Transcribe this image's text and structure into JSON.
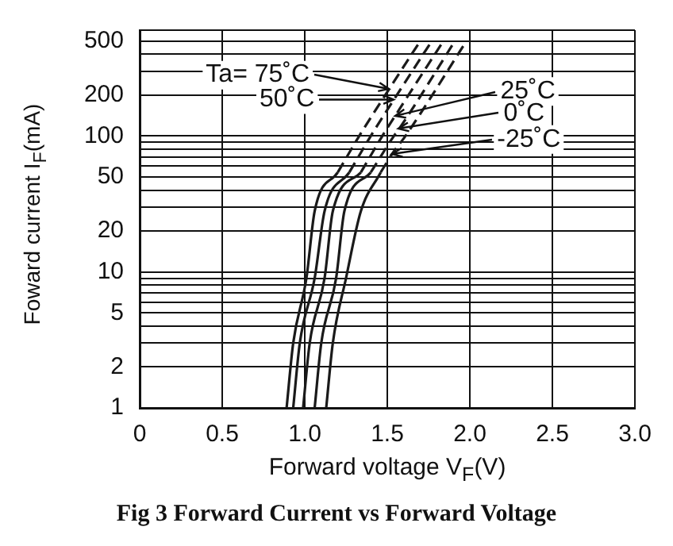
{
  "chart_data": {
    "type": "line",
    "title": "Fig 3  Forward Current vs Forward Voltage",
    "xlabel": "Forward voltage V$_{F}$(V)",
    "ylabel": "Foward current I$_{F}$(mA)",
    "log": "y",
    "grid": true,
    "legend": false,
    "marker": "none",
    "xlim": [
      0,
      3
    ],
    "xticks": [
      0,
      {
        "value": 0.5,
        "label": "0.5"
      },
      {
        "value": 1,
        "label": "1.0"
      },
      {
        "value": 1.5,
        "label": "1.5"
      },
      {
        "value": 2,
        "label": "2.0"
      },
      {
        "value": 2.5,
        "label": "2.5"
      },
      {
        "value": 3,
        "label": "3.0"
      }
    ],
    "ylim": [
      1,
      600
    ],
    "yticks": [
      1,
      2,
      {
        "value": 3,
        "label": null
      },
      {
        "value": 4,
        "label": null
      },
      5,
      {
        "value": 6,
        "label": null
      },
      {
        "value": 7,
        "label": null
      },
      {
        "value": 8,
        "label": null
      },
      {
        "value": 9,
        "label": null
      },
      10,
      20,
      {
        "value": 30,
        "label": null
      },
      {
        "value": 40,
        "label": null
      },
      50,
      {
        "value": 60,
        "label": null
      },
      {
        "value": 70,
        "label": null
      },
      {
        "value": 80,
        "label": null
      },
      {
        "value": 90,
        "label": null
      },
      100,
      200,
      {
        "value": 300,
        "label": null
      },
      {
        "value": 400,
        "label": null
      },
      500,
      {
        "value": 600,
        "label": null
      }
    ],
    "series": [
      {
        "color": "#1a1a1a",
        "line_style": "solid",
        "x": [
          0.89,
          0.93,
          1.01,
          1.06,
          1.2
        ],
        "values": [
          1,
          3,
          9,
          28,
          54
        ]
      },
      {
        "color": "#1a1a1a",
        "line_style": "solid",
        "x": [
          0.93,
          0.97,
          1.06,
          1.12,
          1.27
        ],
        "values": [
          1,
          3,
          9,
          28,
          54
        ]
      },
      {
        "color": "#1a1a1a",
        "line_style": "solid",
        "x": [
          0.99,
          1.03,
          1.12,
          1.17,
          1.34
        ],
        "values": [
          1,
          3,
          9,
          28,
          54
        ]
      },
      {
        "color": "#1a1a1a",
        "line_style": "solid",
        "x": [
          1.06,
          1.1,
          1.19,
          1.24,
          1.4
        ],
        "values": [
          1,
          3,
          9,
          28,
          54
        ]
      },
      {
        "color": "#1a1a1a",
        "line_style": "solid",
        "x": [
          1.13,
          1.17,
          1.25,
          1.34,
          1.46
        ],
        "values": [
          1,
          3,
          9,
          28,
          54
        ]
      },
      {
        "color": "#1a1a1a",
        "line_style": "dashed",
        "x": [
          1.2,
          1.33,
          1.51,
          1.7
        ],
        "values": [
          54,
          100,
          220,
          500
        ]
      },
      {
        "color": "#1a1a1a",
        "line_style": "dashed",
        "x": [
          1.27,
          1.4,
          1.54,
          1.77
        ],
        "values": [
          54,
          100,
          185,
          500
        ]
      },
      {
        "color": "#1a1a1a",
        "line_style": "dashed",
        "x": [
          1.34,
          1.47,
          1.55,
          1.84
        ],
        "values": [
          54,
          100,
          142,
          500
        ]
      },
      {
        "color": "#1a1a1a",
        "line_style": "dashed",
        "x": [
          1.4,
          1.54,
          1.57,
          1.91
        ],
        "values": [
          54,
          100,
          112,
          500
        ]
      },
      {
        "color": "#1a1a1a",
        "line_style": "dashed",
        "x": [
          1.46,
          1.53,
          1.61,
          1.98
        ],
        "values": [
          54,
          74,
          100,
          500
        ]
      }
    ],
    "annotations": [
      {
        "text": "Ta= 75˚C",
        "x": 1.51,
        "y": 220
      },
      {
        "text": "50˚C",
        "x": 1.54,
        "y": 185
      },
      {
        "text": "25˚C",
        "x": 1.55,
        "y": 142
      },
      {
        "text": "0˚C",
        "x": 1.57,
        "y": 112
      },
      {
        "text": "-25˚C",
        "x": 1.53,
        "y": 74
      }
    ]
  }
}
